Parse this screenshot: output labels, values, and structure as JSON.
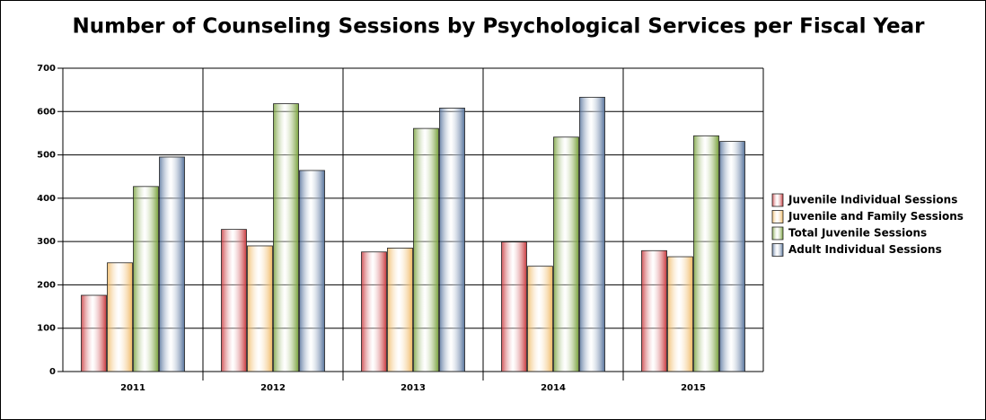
{
  "chart_data": {
    "type": "bar",
    "title": "Number of Counseling Sessions by Psychological Services per Fiscal Year",
    "categories": [
      "2011",
      "2012",
      "2013",
      "2014",
      "2015"
    ],
    "series": [
      {
        "name": "Juvenile Individual Sessions",
        "color": "#c8383c",
        "values": [
          176,
          328,
          276,
          299,
          279
        ]
      },
      {
        "name": "Juvenile and Family Sessions",
        "color": "#f0b862",
        "values": [
          251,
          290,
          285,
          243,
          265
        ]
      },
      {
        "name": "Total Juvenile Sessions",
        "color": "#77a03a",
        "values": [
          427,
          618,
          561,
          541,
          544
        ]
      },
      {
        "name": "Adult Individual Sessions",
        "color": "#56739c",
        "values": [
          495,
          464,
          608,
          633,
          531
        ]
      }
    ],
    "ylim": [
      0,
      700
    ],
    "yticks": [
      0,
      100,
      200,
      300,
      400,
      500,
      600,
      700
    ],
    "grid": true,
    "legend": "right"
  }
}
